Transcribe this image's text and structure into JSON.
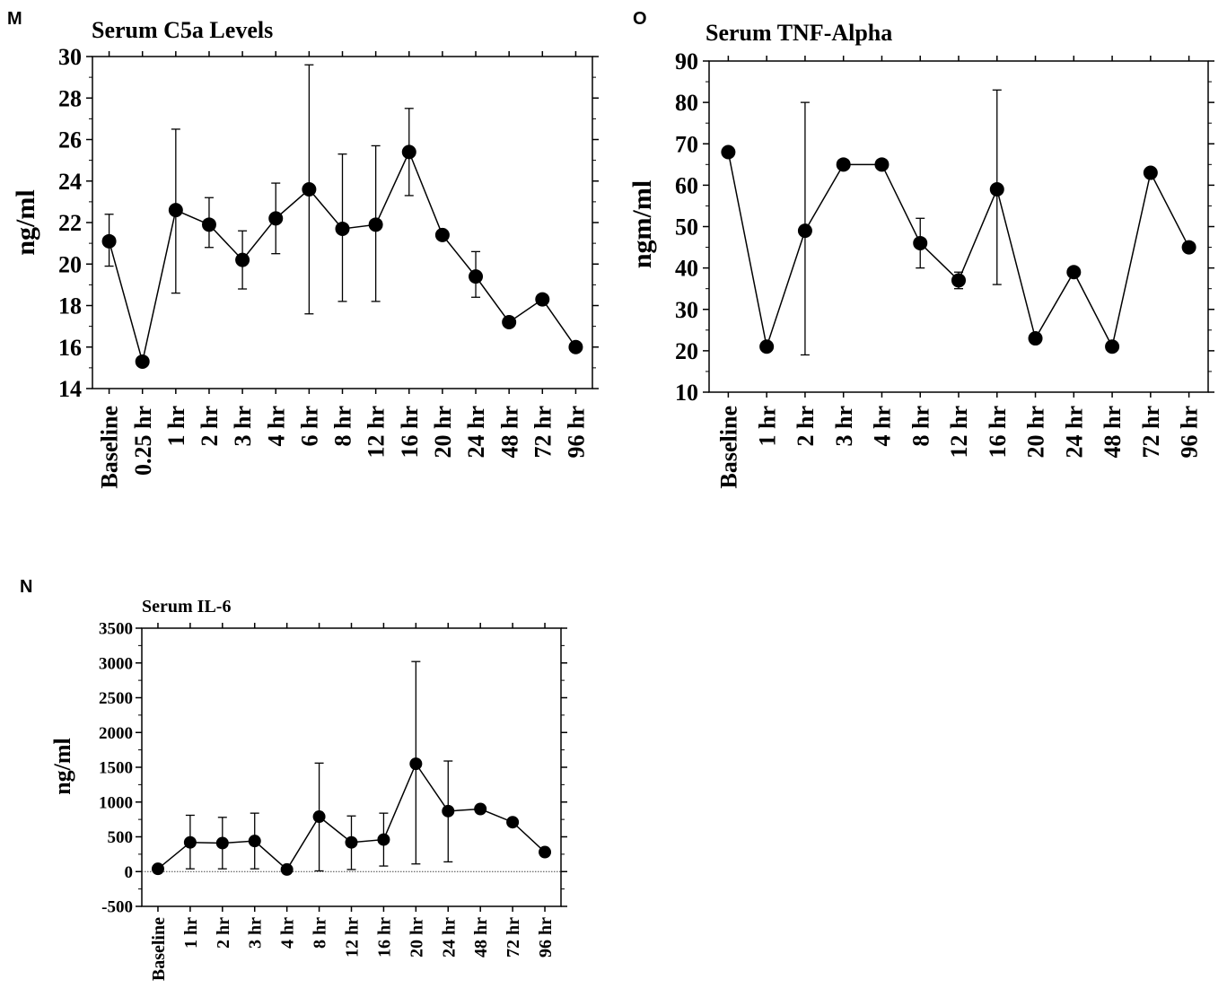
{
  "chart_data": [
    {
      "panel": "M",
      "type": "line",
      "title": "Serum C5a Levels",
      "ylabel": "ng/ml",
      "xlabel": "",
      "ylim": [
        14,
        30
      ],
      "yticks": [
        14,
        16,
        18,
        20,
        22,
        24,
        26,
        28,
        30
      ],
      "categories": [
        "Baseline",
        "0.25 hr",
        "1 hr",
        "2 hr",
        "3 hr",
        "4 hr",
        "6 hr",
        "8 hr",
        "12 hr",
        "16 hr",
        "20 hr",
        "24 hr",
        "48 hr",
        "72 hr",
        "96 hr"
      ],
      "values": [
        21.1,
        15.3,
        22.6,
        21.9,
        20.2,
        22.2,
        23.6,
        21.7,
        21.9,
        25.4,
        21.4,
        19.4,
        17.2,
        18.3,
        16.0
      ],
      "error_upper": [
        22.4,
        null,
        26.5,
        23.2,
        21.6,
        23.9,
        29.6,
        25.3,
        25.7,
        27.5,
        null,
        20.6,
        null,
        null,
        null
      ],
      "error_lower": [
        19.9,
        null,
        18.6,
        20.8,
        18.8,
        20.5,
        17.6,
        18.2,
        18.2,
        23.3,
        null,
        18.4,
        null,
        null,
        null
      ],
      "grid": false,
      "legend": "none"
    },
    {
      "panel": "O",
      "type": "line",
      "title": "Serum TNF-Alpha",
      "ylabel": "ngm/ml",
      "xlabel": "",
      "ylim": [
        10,
        90
      ],
      "yticks": [
        10,
        20,
        30,
        40,
        50,
        60,
        70,
        80,
        90
      ],
      "categories": [
        "Baseline",
        "1 hr",
        "2 hr",
        "3 hr",
        "4 hr",
        "8 hr",
        "12 hr",
        "16 hr",
        "20 hr",
        "24 hr",
        "48 hr",
        "72 hr",
        "96 hr"
      ],
      "values": [
        68,
        21,
        49,
        65,
        65,
        46,
        37,
        59,
        23,
        39,
        21,
        63,
        45
      ],
      "error_upper": [
        null,
        null,
        80,
        null,
        null,
        52,
        39,
        null,
        null,
        null,
        null,
        null,
        null
      ],
      "error_lower": [
        null,
        null,
        19,
        null,
        null,
        40,
        35,
        36,
        null,
        null,
        null,
        null,
        null
      ],
      "error_upper_extra": [
        null,
        null,
        null,
        null,
        null,
        null,
        null,
        83,
        null,
        null,
        null,
        null,
        null
      ],
      "grid": false,
      "legend": "none"
    },
    {
      "panel": "N",
      "type": "line",
      "title": "Serum IL-6",
      "ylabel": "ng/ml",
      "xlabel": "",
      "ylim": [
        -500,
        3500
      ],
      "yticks": [
        -500,
        0,
        500,
        1000,
        1500,
        2000,
        2500,
        3000,
        3500
      ],
      "categories": [
        "Baseline",
        "1 hr",
        "2 hr",
        "3 hr",
        "4 hr",
        "8 hr",
        "12 hr",
        "16 hr",
        "20 hr",
        "24 hr",
        "48 hr",
        "72 hr",
        "96 hr"
      ],
      "values": [
        40,
        420,
        410,
        440,
        30,
        790,
        420,
        460,
        1550,
        870,
        900,
        710,
        280
      ],
      "error_upper": [
        null,
        810,
        780,
        840,
        null,
        1560,
        800,
        840,
        3020,
        1590,
        null,
        null,
        null
      ],
      "error_lower": [
        null,
        40,
        40,
        40,
        null,
        10,
        30,
        80,
        110,
        140,
        null,
        null,
        null
      ],
      "zero_line": true,
      "grid": false,
      "legend": "none"
    }
  ]
}
